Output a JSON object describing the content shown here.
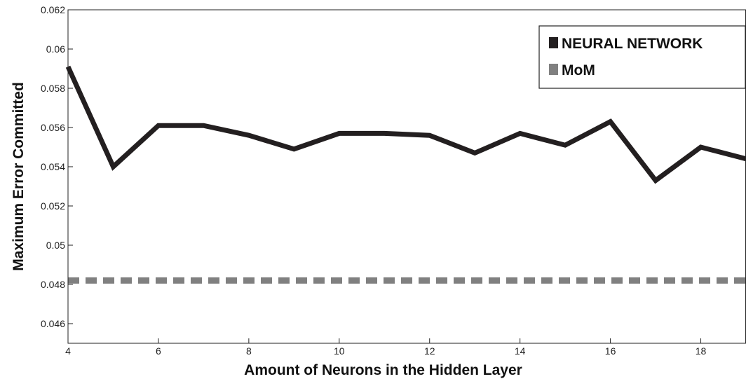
{
  "chart_data": {
    "type": "line",
    "title": "",
    "xlabel": "Amount of Neurons in the Hidden Layer",
    "ylabel": "Maximum Error Committed",
    "xlim": [
      4,
      19
    ],
    "ylim": [
      0.045,
      0.062
    ],
    "x_ticks": [
      4,
      6,
      8,
      10,
      12,
      14,
      16,
      18
    ],
    "y_ticks": [
      0.046,
      0.048,
      0.05,
      0.052,
      0.054,
      0.056,
      0.058,
      0.06,
      0.062
    ],
    "x_tick_labels": [
      "4",
      "6",
      "8",
      "10",
      "12",
      "14",
      "16",
      "18"
    ],
    "y_tick_labels": [
      "0.046",
      "0.048",
      "0.05",
      "0.052",
      "0.054",
      "0.056",
      "0.058",
      "0.06",
      "0.062"
    ],
    "grid": false,
    "legend_position": "top-right",
    "series": [
      {
        "name": "NEURAL NETWORK",
        "style": "solid",
        "color": "#231f20",
        "x": [
          4,
          5,
          6,
          7,
          8,
          9,
          10,
          11,
          12,
          13,
          14,
          15,
          16,
          17,
          18,
          19
        ],
        "y": [
          0.0591,
          0.054,
          0.0561,
          0.0561,
          0.0556,
          0.0549,
          0.0557,
          0.0557,
          0.0556,
          0.0547,
          0.0557,
          0.0551,
          0.0563,
          0.0533,
          0.055,
          0.0544
        ]
      },
      {
        "name": "MoM",
        "style": "dashed",
        "color": "#808080",
        "x": [
          4,
          19
        ],
        "y": [
          0.0482,
          0.0482
        ]
      }
    ]
  }
}
